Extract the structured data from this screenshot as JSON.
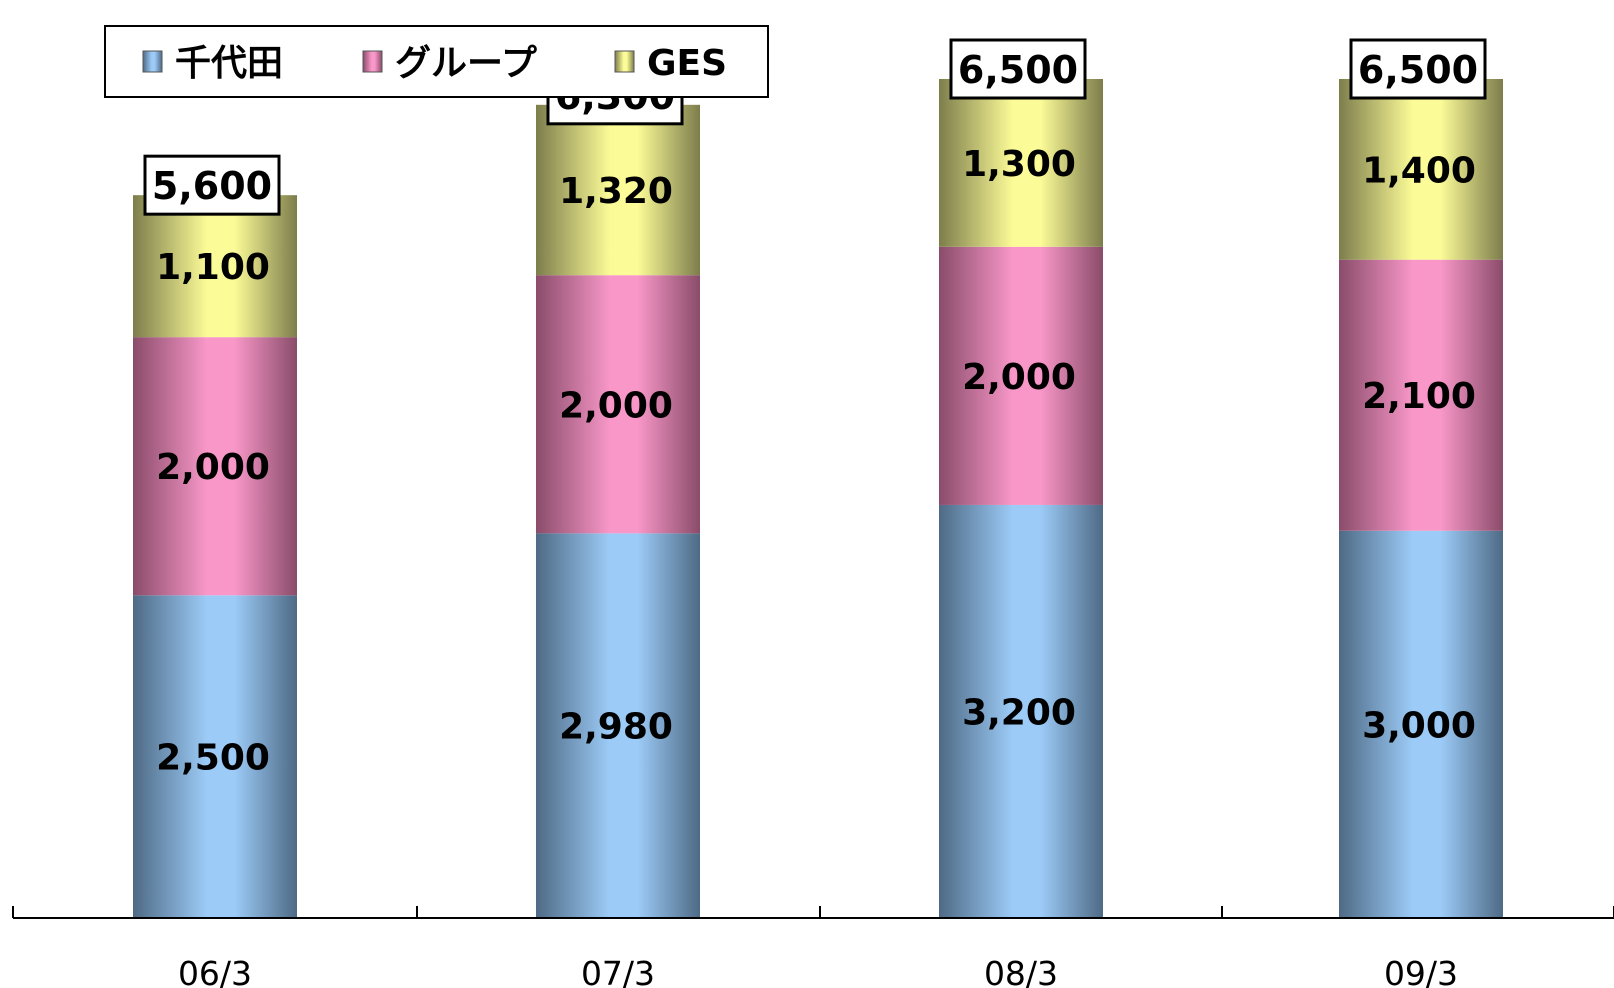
{
  "chart_data": {
    "type": "bar",
    "stacked": true,
    "categories": [
      "06/3",
      "07/3",
      "08/3",
      "09/3"
    ],
    "series": [
      {
        "name": "千代田",
        "values": [
          2500,
          2980,
          3200,
          3000
        ],
        "color": "#9ccbf7",
        "shade": "#4e6a85"
      },
      {
        "name": "グループ",
        "values": [
          2000,
          2000,
          2000,
          2100
        ],
        "color": "#f897c8",
        "shade": "#8a4c6a"
      },
      {
        "name": "GES",
        "values": [
          1100,
          1320,
          1300,
          1400
        ],
        "color": "#fbfb97",
        "shade": "#7d7d4c"
      }
    ],
    "totals": [
      5600,
      6300,
      6500,
      6500
    ],
    "segment_labels": [
      [
        "2,500",
        "2,980",
        "3,200",
        "3,000"
      ],
      [
        "2,000",
        "2,000",
        "2,000",
        "2,100"
      ],
      [
        "1,100",
        "1,320",
        "1,300",
        "1,400"
      ]
    ],
    "total_labels": [
      "5,600",
      "6,300",
      "6,500",
      "6,500"
    ],
    "legend_labels": [
      "千代田",
      "グループ",
      "GES"
    ],
    "title": "",
    "xlabel": "",
    "ylabel": "",
    "ylim": [
      0,
      6500
    ],
    "grid": false,
    "legend": "top-left"
  }
}
